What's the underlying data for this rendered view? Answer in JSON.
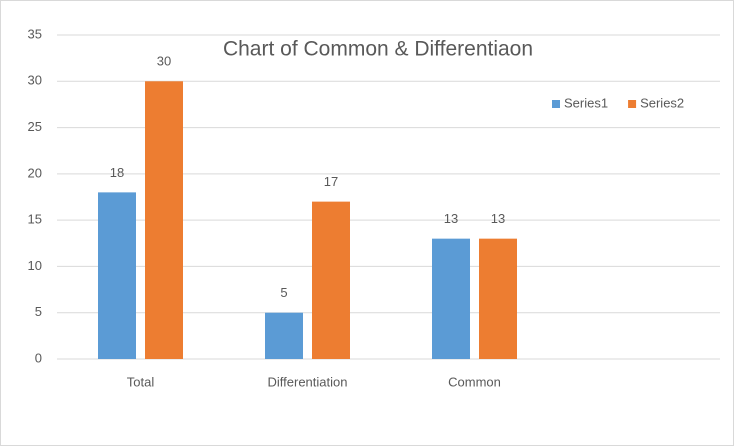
{
  "chart_data": {
    "type": "bar",
    "title": "Chart of Common & Differentiaon",
    "categories": [
      "Total",
      "Differentiation",
      "Common"
    ],
    "series": [
      {
        "name": "Series1",
        "color": "#5b9bd5",
        "values": [
          18,
          5,
          13
        ]
      },
      {
        "name": "Series2",
        "color": "#ed7d31",
        "values": [
          30,
          17,
          13
        ]
      }
    ],
    "ylim": [
      0,
      35
    ],
    "yticks": [
      0,
      5,
      10,
      15,
      20,
      25,
      30,
      35
    ],
    "grid": true,
    "legend": "top-right"
  }
}
